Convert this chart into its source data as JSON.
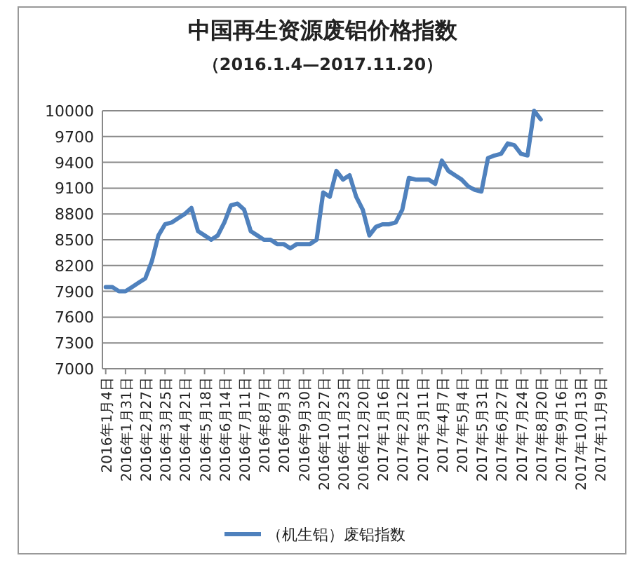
{
  "chart_data": {
    "type": "line",
    "title": "中国再生资源废铝价格指数",
    "subtitle": "（2016.1.4—2017.11.20）",
    "categories": [
      "2016年1月4日",
      null,
      null,
      "2016年1月31日",
      null,
      null,
      "2016年2月27日",
      null,
      null,
      "2016年3月25日",
      null,
      null,
      "2016年4月21日",
      null,
      null,
      "2016年5月18日",
      null,
      null,
      "2016年6月14日",
      null,
      null,
      "2016年7月11日",
      null,
      null,
      "2016年8月7日",
      null,
      null,
      "2016年9月3日",
      null,
      null,
      "2016年9月30日",
      null,
      null,
      "2016年10月27日",
      null,
      null,
      "2016年11月23日",
      null,
      null,
      "2016年12月20日",
      null,
      null,
      "2017年1月16日",
      null,
      null,
      "2017年2月12日",
      null,
      null,
      "2017年3月11日",
      null,
      null,
      "2017年4月7日",
      null,
      null,
      "2017年5月4日",
      null,
      null,
      "2017年5月31日",
      null,
      null,
      "2017年6月27日",
      null,
      null,
      "2017年7月24日",
      null,
      null,
      "2017年8月20日",
      null,
      null,
      "2017年9月16日",
      null,
      null,
      "2017年10月13日",
      null,
      null,
      "2017年11月9日"
    ],
    "series": [
      {
        "name": "（机生铝）废铝指数",
        "color": "#4f81bd",
        "values": [
          7950,
          7950,
          7900,
          7900,
          7950,
          8000,
          8050,
          8250,
          8550,
          8680,
          8700,
          8750,
          8800,
          8870,
          8600,
          8550,
          8500,
          8550,
          8700,
          8900,
          8920,
          8850,
          8600,
          8550,
          8500,
          8500,
          8450,
          8450,
          8400,
          8450,
          8450,
          8450,
          8500,
          9050,
          9000,
          9300,
          9200,
          9250,
          9000,
          8850,
          8550,
          8650,
          8680,
          8680,
          8700,
          8850,
          9220,
          9200,
          9200,
          9200,
          9150,
          9420,
          9300,
          9250,
          9200,
          9120,
          9080,
          9060,
          9450,
          9480,
          9500,
          9620,
          9600,
          9500,
          9480,
          10000,
          9900,
          null,
          null,
          null,
          null,
          null,
          null,
          null,
          null,
          null
        ]
      }
    ],
    "ylim": [
      7000,
      10000
    ],
    "yticks": [
      7000,
      7300,
      7600,
      7900,
      8200,
      8500,
      8800,
      9100,
      9400,
      9700,
      10000
    ],
    "grid": "y",
    "legend": "bottom"
  }
}
